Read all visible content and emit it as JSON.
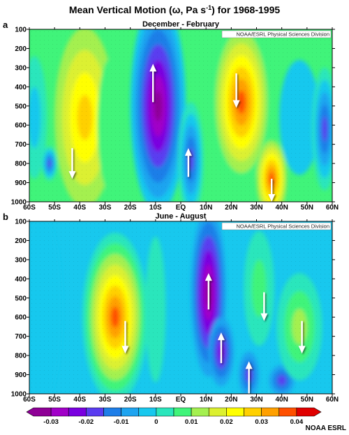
{
  "chart_data": {
    "type": "heatmap",
    "title_main": "Mean Vertical Motion (",
    "title_symbol": "ω",
    "title_unit_pre": ", Pa s",
    "title_unit_sup": "-1",
    "title_end": ") for 1968-1995",
    "credit": "NOAA/ESRL Physical Sciences Division",
    "footer": "NOAA ESRL",
    "x_ticks": [
      "60S",
      "50S",
      "40S",
      "30S",
      "20S",
      "10S",
      "EQ",
      "10N",
      "20N",
      "30N",
      "40N",
      "50N",
      "60N"
    ],
    "x_values": [
      -60,
      -50,
      -40,
      -30,
      -20,
      -10,
      0,
      10,
      20,
      30,
      40,
      50,
      60
    ],
    "y_ticks": [
      "100",
      "200",
      "300",
      "400",
      "500",
      "600",
      "700",
      "800",
      "900",
      "1000"
    ],
    "y_values": [
      100,
      200,
      300,
      400,
      500,
      600,
      700,
      800,
      900,
      1000
    ],
    "xlim": [
      -60,
      60
    ],
    "ylim": [
      100,
      1000
    ],
    "colorbar": {
      "ticks": [
        "-0.03",
        "-0.02",
        "-0.01",
        "0",
        "0.01",
        "0.02",
        "0.03",
        "0.04"
      ],
      "tick_values": [
        -0.03,
        -0.02,
        -0.01,
        0,
        0.01,
        0.02,
        0.03,
        0.04
      ],
      "range": [
        -0.035,
        0.045
      ],
      "colors": [
        "#8e0096",
        "#a100c8",
        "#7a00e0",
        "#5a3cf0",
        "#1e7ee8",
        "#1ea4f0",
        "#18c8ee",
        "#2ae6bc",
        "#40f47a",
        "#a4f050",
        "#dcf030",
        "#ffff00",
        "#ffd000",
        "#ffa000",
        "#ff5000",
        "#e00000"
      ]
    },
    "panels": [
      {
        "letter": "a",
        "subtitle": "December - February",
        "background": 0.005,
        "cells": [
          {
            "lat": -58,
            "p": 560,
            "rx": 5,
            "ry": 320,
            "v": -0.004
          },
          {
            "lat": -52,
            "p": 800,
            "rx": 3,
            "ry": 90,
            "v": -0.018
          },
          {
            "lat": -38,
            "p": 560,
            "rx": 12,
            "ry": 470,
            "v": 0.027
          },
          {
            "lat": -28,
            "p": 600,
            "rx": 5,
            "ry": 350,
            "v": 0.006
          },
          {
            "lat": -9,
            "p": 500,
            "rx": 11,
            "ry": 560,
            "v": -0.032
          },
          {
            "lat": 4,
            "p": 780,
            "rx": 5,
            "ry": 300,
            "v": -0.02
          },
          {
            "lat": 24,
            "p": 480,
            "rx": 12,
            "ry": 430,
            "v": 0.038
          },
          {
            "lat": 36,
            "p": 880,
            "rx": 6,
            "ry": 200,
            "v": 0.036
          },
          {
            "lat": 47,
            "p": 560,
            "rx": 8,
            "ry": 300,
            "v": -0.002
          },
          {
            "lat": 57,
            "p": 620,
            "rx": 5,
            "ry": 320,
            "v": -0.018
          }
        ],
        "arrows": [
          {
            "lat": -11,
            "p_from": 480,
            "p_to": 280,
            "direction": "up"
          },
          {
            "lat": 3,
            "p_from": 870,
            "p_to": 720,
            "direction": "up"
          },
          {
            "lat": -43,
            "p_from": 720,
            "p_to": 880,
            "direction": "down"
          },
          {
            "lat": 22,
            "p_from": 330,
            "p_to": 510,
            "direction": "down"
          },
          {
            "lat": 36,
            "p_from": 880,
            "p_to": 1000,
            "direction": "down"
          }
        ]
      },
      {
        "letter": "b",
        "subtitle": "June - August",
        "background": -0.003,
        "cells": [
          {
            "lat": -55,
            "p": 560,
            "rx": 8,
            "ry": 480,
            "v": -0.004
          },
          {
            "lat": -26,
            "p": 600,
            "rx": 13,
            "ry": 440,
            "v": 0.035
          },
          {
            "lat": -10,
            "p": 560,
            "rx": 4,
            "ry": 380,
            "v": 0.004
          },
          {
            "lat": 11,
            "p": 470,
            "rx": 7,
            "ry": 440,
            "v": -0.034
          },
          {
            "lat": 16,
            "p": 780,
            "rx": 5,
            "ry": 180,
            "v": -0.022
          },
          {
            "lat": 27,
            "p": 900,
            "rx": 4,
            "ry": 120,
            "v": -0.016
          },
          {
            "lat": 40,
            "p": 930,
            "rx": 5,
            "ry": 80,
            "v": -0.018
          },
          {
            "lat": 31,
            "p": 450,
            "rx": 6,
            "ry": 300,
            "v": 0.008
          },
          {
            "lat": 47,
            "p": 650,
            "rx": 9,
            "ry": 280,
            "v": 0.012
          }
        ],
        "arrows": [
          {
            "lat": 11,
            "p_from": 560,
            "p_to": 370,
            "direction": "up"
          },
          {
            "lat": 16,
            "p_from": 840,
            "p_to": 680,
            "direction": "up"
          },
          {
            "lat": 27,
            "p_from": 1000,
            "p_to": 830,
            "direction": "up"
          },
          {
            "lat": -22,
            "p_from": 620,
            "p_to": 790,
            "direction": "down"
          },
          {
            "lat": 33,
            "p_from": 470,
            "p_to": 620,
            "direction": "down"
          },
          {
            "lat": 48,
            "p_from": 620,
            "p_to": 790,
            "direction": "down"
          }
        ]
      }
    ]
  }
}
